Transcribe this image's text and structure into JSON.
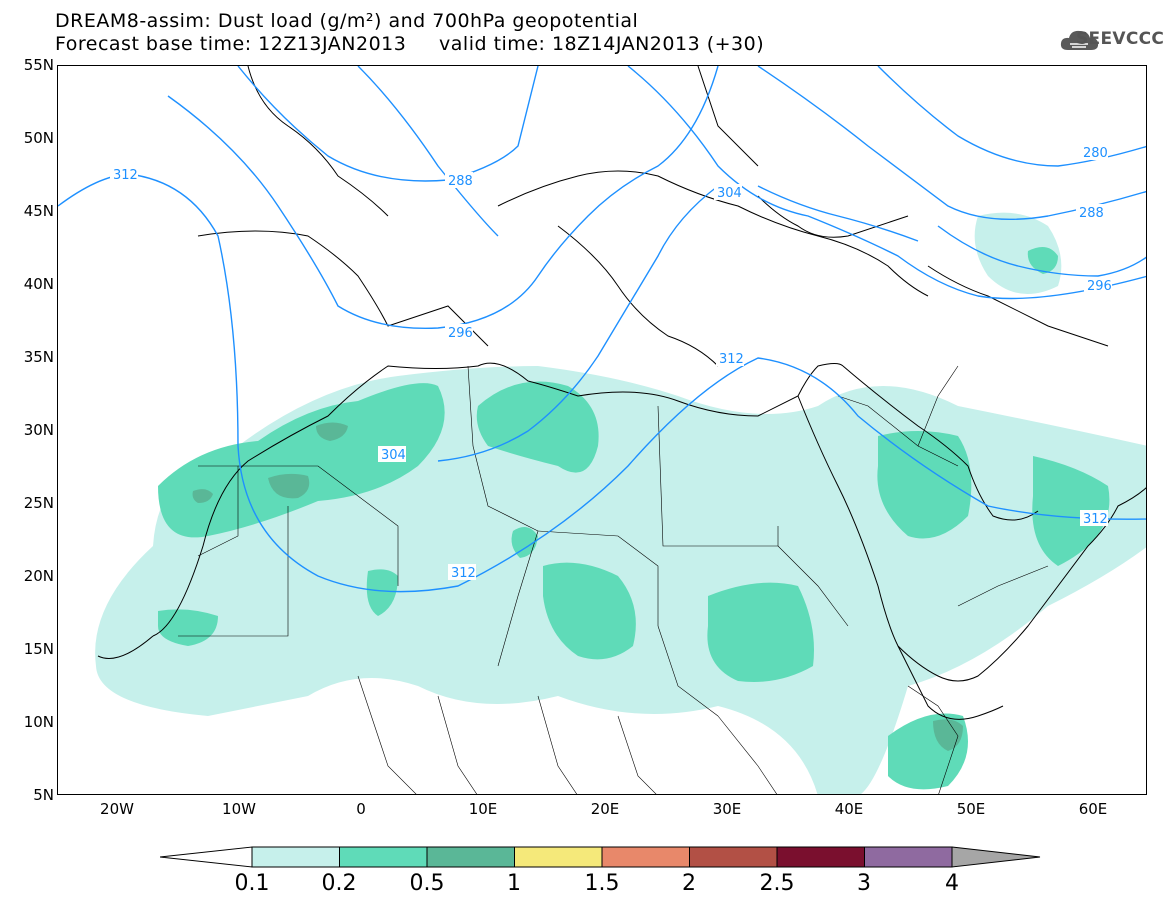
{
  "header": {
    "title_line1": "DREAM8-assim: Dust load (g/m²) and 700hPa geopotential",
    "title_line2": "Forecast base time: 12Z13JAN2013     valid time: 18Z14JAN2013 (+30)",
    "logo_text": "SEEVCCC",
    "logo_icon": "cloud-logo-icon"
  },
  "map": {
    "lat_labels": [
      "55N",
      "50N",
      "45N",
      "40N",
      "35N",
      "30N",
      "25N",
      "20N",
      "15N",
      "10N",
      "5N"
    ],
    "lon_labels": [
      "20W",
      "10W",
      "0",
      "10E",
      "20E",
      "30E",
      "40E",
      "50E",
      "60E"
    ],
    "contour_labels": [
      "312",
      "288",
      "296",
      "304",
      "304",
      "312",
      "312",
      "280",
      "288",
      "296",
      "312"
    ]
  },
  "legend": {
    "values": [
      "0.1",
      "0.2",
      "0.5",
      "1",
      "1.5",
      "2",
      "2.5",
      "3",
      "4"
    ],
    "colors": [
      "#c6f0eb",
      "#5fdbb8",
      "#5ab797",
      "#f5e97a",
      "#e8886a",
      "#b25045",
      "#7a0f2e",
      "#8f6aa0",
      "#a6a6a6"
    ]
  }
}
